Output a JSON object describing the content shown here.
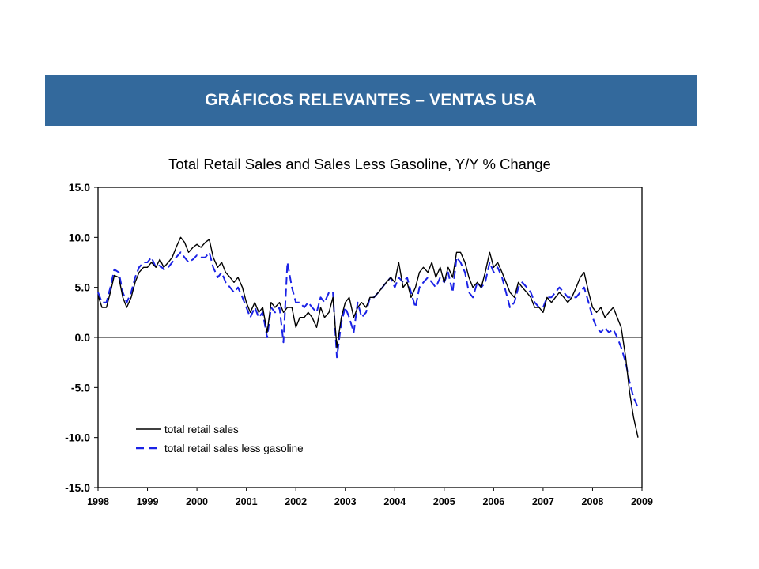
{
  "slide": {
    "banner_title": "GRÁFICOS RELEVANTES – VENTAS USA",
    "banner_color": "#33699c"
  },
  "chart_data": {
    "type": "line",
    "title": "Total Retail Sales and Sales Less Gasoline, Y/Y % Change",
    "xlabel": "",
    "ylabel": "",
    "xlim": [
      1998,
      2009
    ],
    "ylim": [
      -15,
      15
    ],
    "y_ticks": [
      15,
      10,
      5,
      0,
      -5,
      -10,
      -15
    ],
    "y_tick_labels": [
      "15.0",
      "10.0",
      "5.0",
      "0.0",
      "-5.0",
      "-10.0",
      "-15.0"
    ],
    "x_ticks": [
      1998,
      1999,
      2000,
      2001,
      2002,
      2003,
      2004,
      2005,
      2006,
      2007,
      2008,
      2009
    ],
    "x_tick_labels": [
      "1998",
      "1999",
      "2000",
      "2001",
      "2002",
      "2003",
      "2004",
      "2005",
      "2006",
      "2007",
      "2008",
      "2009"
    ],
    "zero_line": true,
    "grid": false,
    "legend_position": "bottom-left",
    "series": [
      {
        "name": "total retail sales",
        "color": "#000000",
        "style": "solid",
        "points": [
          [
            1998.0,
            4.2
          ],
          [
            1998.08,
            3.0
          ],
          [
            1998.17,
            3.0
          ],
          [
            1998.25,
            4.5
          ],
          [
            1998.33,
            6.2
          ],
          [
            1998.42,
            6.0
          ],
          [
            1998.5,
            4.0
          ],
          [
            1998.58,
            3.0
          ],
          [
            1998.67,
            4.0
          ],
          [
            1998.75,
            5.5
          ],
          [
            1998.83,
            6.5
          ],
          [
            1998.92,
            7.0
          ],
          [
            1999.0,
            7.0
          ],
          [
            1999.08,
            7.5
          ],
          [
            1999.17,
            7.0
          ],
          [
            1999.25,
            7.8
          ],
          [
            1999.33,
            7.0
          ],
          [
            1999.42,
            7.5
          ],
          [
            1999.5,
            8.0
          ],
          [
            1999.58,
            9.0
          ],
          [
            1999.67,
            10.0
          ],
          [
            1999.75,
            9.5
          ],
          [
            1999.83,
            8.5
          ],
          [
            1999.92,
            9.0
          ],
          [
            2000.0,
            9.3
          ],
          [
            2000.08,
            9.0
          ],
          [
            2000.17,
            9.5
          ],
          [
            2000.25,
            9.8
          ],
          [
            2000.33,
            8.0
          ],
          [
            2000.42,
            7.0
          ],
          [
            2000.5,
            7.5
          ],
          [
            2000.58,
            6.5
          ],
          [
            2000.67,
            6.0
          ],
          [
            2000.75,
            5.5
          ],
          [
            2000.83,
            6.0
          ],
          [
            2000.92,
            5.0
          ],
          [
            2001.0,
            3.5
          ],
          [
            2001.08,
            2.5
          ],
          [
            2001.17,
            3.5
          ],
          [
            2001.25,
            2.5
          ],
          [
            2001.33,
            3.0
          ],
          [
            2001.42,
            0.5
          ],
          [
            2001.5,
            3.5
          ],
          [
            2001.58,
            3.0
          ],
          [
            2001.67,
            3.5
          ],
          [
            2001.75,
            2.5
          ],
          [
            2001.83,
            3.0
          ],
          [
            2001.92,
            3.0
          ],
          [
            2002.0,
            1.0
          ],
          [
            2002.08,
            2.0
          ],
          [
            2002.17,
            2.0
          ],
          [
            2002.25,
            2.5
          ],
          [
            2002.33,
            2.0
          ],
          [
            2002.42,
            1.0
          ],
          [
            2002.5,
            3.0
          ],
          [
            2002.58,
            2.0
          ],
          [
            2002.67,
            2.5
          ],
          [
            2002.75,
            4.0
          ],
          [
            2002.83,
            -1.0
          ],
          [
            2002.92,
            2.0
          ],
          [
            2003.0,
            3.5
          ],
          [
            2003.08,
            4.0
          ],
          [
            2003.17,
            2.0
          ],
          [
            2003.25,
            3.0
          ],
          [
            2003.33,
            3.5
          ],
          [
            2003.42,
            3.0
          ],
          [
            2003.5,
            4.0
          ],
          [
            2003.58,
            4.0
          ],
          [
            2003.67,
            4.5
          ],
          [
            2003.75,
            5.0
          ],
          [
            2003.83,
            5.5
          ],
          [
            2003.92,
            6.0
          ],
          [
            2004.0,
            5.5
          ],
          [
            2004.08,
            7.5
          ],
          [
            2004.17,
            5.0
          ],
          [
            2004.25,
            5.5
          ],
          [
            2004.33,
            4.0
          ],
          [
            2004.42,
            5.0
          ],
          [
            2004.5,
            6.5
          ],
          [
            2004.58,
            7.0
          ],
          [
            2004.67,
            6.5
          ],
          [
            2004.75,
            7.5
          ],
          [
            2004.83,
            6.0
          ],
          [
            2004.92,
            7.0
          ],
          [
            2005.0,
            5.5
          ],
          [
            2005.08,
            7.0
          ],
          [
            2005.17,
            6.0
          ],
          [
            2005.25,
            8.5
          ],
          [
            2005.33,
            8.5
          ],
          [
            2005.42,
            7.5
          ],
          [
            2005.5,
            6.0
          ],
          [
            2005.58,
            5.0
          ],
          [
            2005.67,
            5.5
          ],
          [
            2005.75,
            5.0
          ],
          [
            2005.83,
            6.5
          ],
          [
            2005.92,
            8.5
          ],
          [
            2006.0,
            7.0
          ],
          [
            2006.08,
            7.5
          ],
          [
            2006.17,
            6.5
          ],
          [
            2006.25,
            5.5
          ],
          [
            2006.33,
            4.5
          ],
          [
            2006.42,
            4.0
          ],
          [
            2006.5,
            5.5
          ],
          [
            2006.58,
            5.0
          ],
          [
            2006.67,
            4.5
          ],
          [
            2006.75,
            4.0
          ],
          [
            2006.83,
            3.0
          ],
          [
            2006.92,
            3.0
          ],
          [
            2007.0,
            2.5
          ],
          [
            2007.08,
            4.0
          ],
          [
            2007.17,
            3.5
          ],
          [
            2007.25,
            4.0
          ],
          [
            2007.33,
            4.5
          ],
          [
            2007.42,
            4.0
          ],
          [
            2007.5,
            3.5
          ],
          [
            2007.58,
            4.0
          ],
          [
            2007.67,
            5.0
          ],
          [
            2007.75,
            6.0
          ],
          [
            2007.83,
            6.5
          ],
          [
            2007.92,
            4.5
          ],
          [
            2008.0,
            3.0
          ],
          [
            2008.08,
            2.5
          ],
          [
            2008.17,
            3.0
          ],
          [
            2008.25,
            2.0
          ],
          [
            2008.33,
            2.5
          ],
          [
            2008.42,
            3.0
          ],
          [
            2008.5,
            2.0
          ],
          [
            2008.58,
            1.0
          ],
          [
            2008.67,
            -2.0
          ],
          [
            2008.75,
            -5.5
          ],
          [
            2008.83,
            -8.0
          ],
          [
            2008.92,
            -10.0
          ]
        ]
      },
      {
        "name": "total retail sales less gasoline",
        "color": "#1a22e6",
        "style": "dashed",
        "points": [
          [
            1998.0,
            4.5
          ],
          [
            1998.08,
            3.5
          ],
          [
            1998.17,
            3.5
          ],
          [
            1998.25,
            5.0
          ],
          [
            1998.33,
            6.8
          ],
          [
            1998.42,
            6.5
          ],
          [
            1998.5,
            4.5
          ],
          [
            1998.58,
            3.5
          ],
          [
            1998.67,
            4.5
          ],
          [
            1998.75,
            6.0
          ],
          [
            1998.83,
            7.0
          ],
          [
            1998.92,
            7.5
          ],
          [
            1999.0,
            7.5
          ],
          [
            1999.08,
            8.0
          ],
          [
            1999.17,
            7.0
          ],
          [
            1999.25,
            7.2
          ],
          [
            1999.33,
            6.8
          ],
          [
            1999.42,
            7.0
          ],
          [
            1999.5,
            7.5
          ],
          [
            1999.58,
            8.0
          ],
          [
            1999.67,
            8.5
          ],
          [
            1999.75,
            8.0
          ],
          [
            1999.83,
            7.5
          ],
          [
            1999.92,
            7.8
          ],
          [
            2000.0,
            8.2
          ],
          [
            2000.08,
            8.0
          ],
          [
            2000.17,
            8.0
          ],
          [
            2000.25,
            8.5
          ],
          [
            2000.33,
            7.0
          ],
          [
            2000.42,
            6.0
          ],
          [
            2000.5,
            6.5
          ],
          [
            2000.58,
            5.5
          ],
          [
            2000.67,
            5.0
          ],
          [
            2000.75,
            4.5
          ],
          [
            2000.83,
            5.0
          ],
          [
            2000.92,
            4.0
          ],
          [
            2001.0,
            3.0
          ],
          [
            2001.08,
            2.0
          ],
          [
            2001.17,
            3.0
          ],
          [
            2001.25,
            2.0
          ],
          [
            2001.33,
            2.5
          ],
          [
            2001.42,
            0.0
          ],
          [
            2001.5,
            3.0
          ],
          [
            2001.58,
            2.5
          ],
          [
            2001.67,
            3.0
          ],
          [
            2001.75,
            -0.5
          ],
          [
            2001.83,
            7.5
          ],
          [
            2001.92,
            5.0
          ],
          [
            2002.0,
            3.5
          ],
          [
            2002.08,
            3.5
          ],
          [
            2002.17,
            3.0
          ],
          [
            2002.25,
            3.5
          ],
          [
            2002.33,
            3.0
          ],
          [
            2002.42,
            2.5
          ],
          [
            2002.5,
            4.0
          ],
          [
            2002.58,
            3.5
          ],
          [
            2002.67,
            4.5
          ],
          [
            2002.75,
            4.5
          ],
          [
            2002.83,
            -2.0
          ],
          [
            2002.92,
            1.5
          ],
          [
            2003.0,
            3.0
          ],
          [
            2003.08,
            2.0
          ],
          [
            2003.17,
            0.5
          ],
          [
            2003.25,
            3.5
          ],
          [
            2003.33,
            2.0
          ],
          [
            2003.42,
            2.5
          ],
          [
            2003.5,
            4.0
          ],
          [
            2003.58,
            4.0
          ],
          [
            2003.67,
            4.5
          ],
          [
            2003.75,
            5.0
          ],
          [
            2003.83,
            5.5
          ],
          [
            2003.92,
            6.0
          ],
          [
            2004.0,
            5.0
          ],
          [
            2004.08,
            6.0
          ],
          [
            2004.17,
            5.5
          ],
          [
            2004.25,
            6.0
          ],
          [
            2004.33,
            4.5
          ],
          [
            2004.42,
            3.0
          ],
          [
            2004.5,
            5.0
          ],
          [
            2004.58,
            5.5
          ],
          [
            2004.67,
            6.0
          ],
          [
            2004.75,
            5.5
          ],
          [
            2004.83,
            5.0
          ],
          [
            2004.92,
            6.0
          ],
          [
            2005.0,
            5.5
          ],
          [
            2005.08,
            6.5
          ],
          [
            2005.17,
            4.5
          ],
          [
            2005.25,
            8.0
          ],
          [
            2005.33,
            7.5
          ],
          [
            2005.42,
            6.5
          ],
          [
            2005.5,
            4.5
          ],
          [
            2005.58,
            4.0
          ],
          [
            2005.67,
            5.5
          ],
          [
            2005.75,
            5.0
          ],
          [
            2005.83,
            5.5
          ],
          [
            2005.92,
            7.5
          ],
          [
            2006.0,
            6.5
          ],
          [
            2006.08,
            7.0
          ],
          [
            2006.17,
            6.0
          ],
          [
            2006.25,
            4.5
          ],
          [
            2006.33,
            3.0
          ],
          [
            2006.42,
            3.5
          ],
          [
            2006.5,
            5.0
          ],
          [
            2006.58,
            5.5
          ],
          [
            2006.67,
            5.0
          ],
          [
            2006.75,
            4.5
          ],
          [
            2006.83,
            3.5
          ],
          [
            2006.92,
            3.0
          ],
          [
            2007.0,
            3.0
          ],
          [
            2007.08,
            4.0
          ],
          [
            2007.17,
            4.0
          ],
          [
            2007.25,
            4.5
          ],
          [
            2007.33,
            5.0
          ],
          [
            2007.42,
            4.5
          ],
          [
            2007.5,
            4.0
          ],
          [
            2007.58,
            4.0
          ],
          [
            2007.67,
            4.0
          ],
          [
            2007.75,
            4.5
          ],
          [
            2007.83,
            5.0
          ],
          [
            2007.92,
            3.5
          ],
          [
            2008.0,
            2.0
          ],
          [
            2008.08,
            1.0
          ],
          [
            2008.17,
            0.5
          ],
          [
            2008.25,
            1.0
          ],
          [
            2008.33,
            0.5
          ],
          [
            2008.42,
            0.8
          ],
          [
            2008.5,
            0.0
          ],
          [
            2008.58,
            -1.0
          ],
          [
            2008.67,
            -2.5
          ],
          [
            2008.75,
            -4.5
          ],
          [
            2008.83,
            -6.0
          ],
          [
            2008.92,
            -7.0
          ]
        ]
      }
    ]
  }
}
